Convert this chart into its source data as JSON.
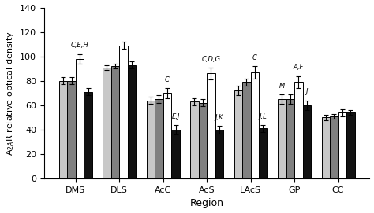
{
  "categories": [
    "DMS",
    "DLS",
    "AcC",
    "AcS",
    "LAcS",
    "GP",
    "CC"
  ],
  "bar_values": [
    [
      80,
      91,
      64,
      63,
      72,
      65,
      50
    ],
    [
      80,
      92,
      65,
      62,
      79,
      65,
      51
    ],
    [
      98,
      109,
      70,
      86,
      87,
      79,
      54
    ],
    [
      71,
      93,
      40,
      40,
      41,
      60,
      54
    ]
  ],
  "bar_errors": [
    [
      3,
      2,
      3,
      3,
      4,
      4,
      2
    ],
    [
      3,
      2,
      3,
      3,
      3,
      4,
      2
    ],
    [
      4,
      3,
      4,
      5,
      5,
      5,
      3
    ],
    [
      3,
      3,
      4,
      3,
      3,
      4,
      2
    ]
  ],
  "bar_colors": [
    "#c8c8c8",
    "#808080",
    "#ffffff",
    "#111111"
  ],
  "ylabel": "A$_{2A}$R relative optical density",
  "xlabel": "Region",
  "ylim": [
    0,
    140
  ],
  "yticks": [
    0,
    20,
    40,
    60,
    80,
    100,
    120,
    140
  ],
  "bar_width": 0.19,
  "figsize": [
    4.74,
    2.71
  ],
  "dpi": 100,
  "annots": [
    {
      "gi": 0,
      "bi": 2,
      "text": "C,E,H",
      "yoff": 4
    },
    {
      "gi": 2,
      "bi": 2,
      "text": "C",
      "yoff": 4
    },
    {
      "gi": 2,
      "bi": 3,
      "text": "E,J",
      "yoff": 4
    },
    {
      "gi": 3,
      "bi": 2,
      "text": "C,D,G",
      "yoff": 4
    },
    {
      "gi": 3,
      "bi": 3,
      "text": "J,K",
      "yoff": 4
    },
    {
      "gi": 4,
      "bi": 2,
      "text": "C",
      "yoff": 4
    },
    {
      "gi": 4,
      "bi": 3,
      "text": "J,L",
      "yoff": 4
    },
    {
      "gi": 5,
      "bi": 2,
      "text": "A,F",
      "yoff": 4
    },
    {
      "gi": 5,
      "bi": 0,
      "text": "M",
      "yoff": 4
    },
    {
      "gi": 5,
      "bi": 3,
      "text": "J",
      "yoff": 4
    }
  ]
}
